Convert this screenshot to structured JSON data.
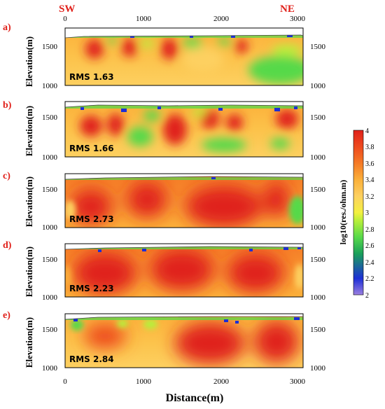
{
  "figure": {
    "direction_left": "SW",
    "direction_right": "NE",
    "xlabel": "Distance(m)",
    "ylabel": "Elevation(m)",
    "colorbar_label": "log10(res./ohm.m)"
  },
  "chart_data": [
    {
      "type": "heatmap",
      "panel": "a)",
      "rms": "RMS 1.63",
      "xlim": [
        0,
        3050
      ],
      "ylim": [
        1000,
        1650
      ],
      "x_ticks": [
        0,
        1000,
        2000,
        3000
      ],
      "y_ticks": [
        1000,
        1500
      ]
    },
    {
      "type": "heatmap",
      "panel": "b)",
      "rms": "RMS 1.66",
      "xlim": [
        0,
        3050
      ],
      "ylim": [
        1000,
        1650
      ],
      "y_ticks": [
        1000,
        1500
      ]
    },
    {
      "type": "heatmap",
      "panel": "c)",
      "rms": "RMS 2.73",
      "xlim": [
        0,
        3050
      ],
      "ylim": [
        1000,
        1650
      ],
      "y_ticks": [
        1000,
        1500
      ]
    },
    {
      "type": "heatmap",
      "panel": "d)",
      "rms": "RMS 2.23",
      "xlim": [
        0,
        3050
      ],
      "ylim": [
        1000,
        1650
      ],
      "y_ticks": [
        1000,
        1500
      ]
    },
    {
      "type": "heatmap",
      "panel": "e)",
      "rms": "RMS 2.84",
      "xlim": [
        0,
        3050
      ],
      "ylim": [
        1000,
        1650
      ],
      "x_ticks": [
        0,
        1000,
        2000,
        3000
      ],
      "y_ticks": [
        1000,
        1500
      ]
    }
  ],
  "colorbar": {
    "ticks": [
      "4",
      "3.8",
      "3.6",
      "3.4",
      "3.2",
      "3",
      "2.8",
      "2.6",
      "2.4",
      "2.2",
      "2"
    ],
    "range": [
      2,
      4
    ],
    "colors": [
      "#9b7fe0",
      "#1c2fd6",
      "#1aa05a",
      "#57d94a",
      "#b7ef3a",
      "#f3f040",
      "#fdd060",
      "#fbb03a",
      "#f57a26",
      "#ee4a1e",
      "#e0201a"
    ]
  }
}
